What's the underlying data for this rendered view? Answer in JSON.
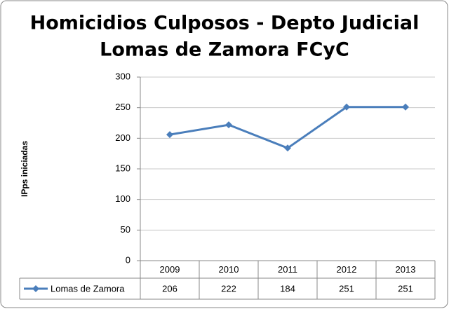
{
  "chart_data": {
    "type": "line",
    "title": [
      "Homicidios Culposos - Depto Judicial",
      "Lomas de Zamora FCyC"
    ],
    "y_label": "IPps iniciadas",
    "categories": [
      "2009",
      "2010",
      "2011",
      "2012",
      "2013"
    ],
    "series": [
      {
        "name": "Lomas de Zamora",
        "color": "#4a7ebb",
        "values": [
          206,
          222,
          184,
          251,
          251
        ]
      }
    ],
    "ylim": [
      0,
      300
    ],
    "yticks": [
      0,
      50,
      100,
      150,
      200,
      250,
      300
    ],
    "grid": true,
    "data_table": true
  }
}
